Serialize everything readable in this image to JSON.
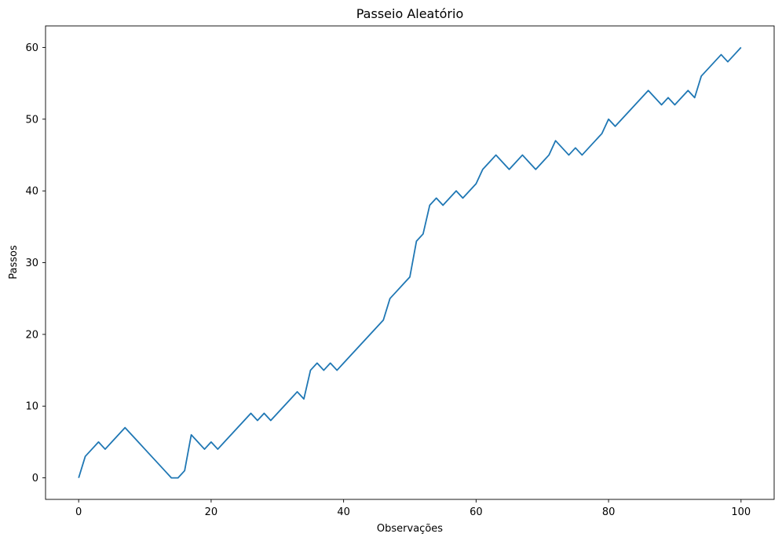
{
  "chart_data": {
    "type": "line",
    "title": "Passeio Aleatório",
    "xlabel": "Observações",
    "ylabel": "Passos",
    "xlim": [
      -5,
      105
    ],
    "ylim": [
      -3,
      63
    ],
    "xticks": [
      0,
      20,
      40,
      60,
      80,
      100
    ],
    "yticks": [
      0,
      10,
      20,
      30,
      40,
      50,
      60
    ],
    "grid": false,
    "colors": {
      "line": "#1f77b4",
      "axes": "#000000",
      "background": "#ffffff"
    },
    "series": [
      {
        "x": [
          0,
          1,
          2,
          3,
          4,
          5,
          6,
          7,
          8,
          9,
          10,
          11,
          12,
          13,
          14,
          15,
          16,
          17,
          18,
          19,
          20,
          21,
          22,
          23,
          24,
          25,
          26,
          27,
          28,
          29,
          30,
          31,
          32,
          33,
          34,
          35,
          36,
          37,
          38,
          39,
          40,
          41,
          42,
          43,
          44,
          45,
          46,
          47,
          48,
          49,
          50,
          51,
          52,
          53,
          54,
          55,
          56,
          57,
          58,
          59,
          60,
          61,
          62,
          63,
          64,
          65,
          66,
          67,
          68,
          69,
          70,
          71,
          72,
          73,
          74,
          75,
          76,
          77,
          78,
          79,
          80,
          81,
          82,
          83,
          84,
          85,
          86,
          87,
          88,
          89,
          90,
          91,
          92,
          93,
          94,
          95,
          96,
          97,
          98,
          99,
          100
        ],
        "y": [
          0,
          3,
          4,
          5,
          4,
          5,
          6,
          7,
          6,
          5,
          4,
          3,
          2,
          1,
          0,
          0,
          1,
          6,
          5,
          4,
          5,
          4,
          5,
          6,
          7,
          8,
          9,
          8,
          9,
          8,
          9,
          10,
          11,
          12,
          11,
          15,
          16,
          15,
          16,
          15,
          16,
          17,
          18,
          19,
          20,
          21,
          22,
          25,
          26,
          27,
          28,
          33,
          34,
          38,
          39,
          38,
          39,
          40,
          39,
          40,
          41,
          43,
          44,
          45,
          44,
          43,
          44,
          45,
          44,
          43,
          44,
          45,
          47,
          46,
          45,
          46,
          45,
          46,
          47,
          48,
          50,
          49,
          50,
          51,
          52,
          53,
          54,
          53,
          52,
          53,
          52,
          53,
          54,
          53,
          56,
          57,
          58,
          59,
          58,
          59,
          60
        ]
      }
    ]
  }
}
